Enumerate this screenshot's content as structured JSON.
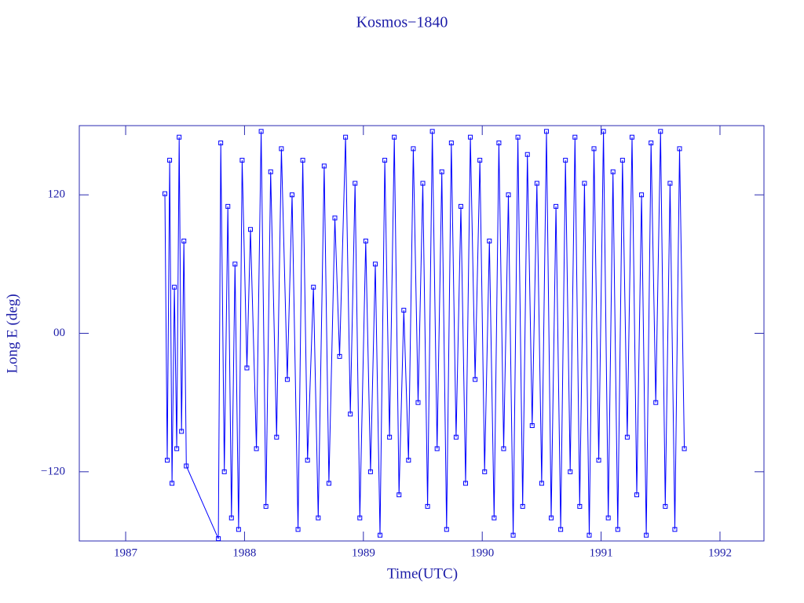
{
  "chart_data": {
    "type": "line",
    "title": "Kosmos−1840",
    "xlabel": "Time(UTC)",
    "ylabel": "Long E (deg)",
    "xlim": [
      1986.61,
      1992.37
    ],
    "ylim": [
      -180,
      180
    ],
    "xticks": [
      1987,
      1988,
      1989,
      1990,
      1991,
      1992
    ],
    "yticks": [
      {
        "value": -120,
        "label": "−120"
      },
      {
        "value": 0,
        "label": "00"
      },
      120
    ],
    "series": [
      {
        "color": "#0000ff",
        "marker": "square",
        "x": [
          1987.33,
          1987.35,
          1987.37,
          1987.39,
          1987.41,
          1987.43,
          1987.45,
          1987.47,
          1987.49,
          1987.51,
          1987.78,
          1987.8,
          1987.83,
          1987.86,
          1987.89,
          1987.92,
          1987.95,
          1987.98,
          1988.02,
          1988.05,
          1988.1,
          1988.14,
          1988.18,
          1988.22,
          1988.27,
          1988.31,
          1988.36,
          1988.4,
          1988.45,
          1988.49,
          1988.53,
          1988.58,
          1988.62,
          1988.67,
          1988.71,
          1988.76,
          1988.8,
          1988.85,
          1988.89,
          1988.93,
          1988.97,
          1989.02,
          1989.06,
          1989.1,
          1989.14,
          1989.18,
          1989.22,
          1989.26,
          1989.3,
          1989.34,
          1989.38,
          1989.42,
          1989.46,
          1989.5,
          1989.54,
          1989.58,
          1989.62,
          1989.66,
          1989.7,
          1989.74,
          1989.78,
          1989.82,
          1989.86,
          1989.9,
          1989.94,
          1989.98,
          1990.02,
          1990.06,
          1990.1,
          1990.14,
          1990.18,
          1990.22,
          1990.26,
          1990.3,
          1990.34,
          1990.38,
          1990.42,
          1990.46,
          1990.5,
          1990.54,
          1990.58,
          1990.62,
          1990.66,
          1990.7,
          1990.74,
          1990.78,
          1990.82,
          1990.86,
          1990.9,
          1990.94,
          1990.98,
          1991.02,
          1991.06,
          1991.1,
          1991.14,
          1991.18,
          1991.22,
          1991.26,
          1991.3,
          1991.34,
          1991.38,
          1991.42,
          1991.46,
          1991.5,
          1991.54,
          1991.58,
          1991.62,
          1991.66,
          1991.7
        ],
        "values": [
          121,
          -110,
          150,
          -130,
          40,
          -100,
          170,
          -85,
          80,
          -115,
          -178,
          165,
          -120,
          110,
          -160,
          60,
          -170,
          150,
          -30,
          90,
          -100,
          175,
          -150,
          140,
          -90,
          160,
          -40,
          120,
          -170,
          150,
          -110,
          40,
          -160,
          145,
          -130,
          100,
          -20,
          170,
          -70,
          130,
          -160,
          80,
          -120,
          60,
          -175,
          150,
          -90,
          170,
          -140,
          20,
          -110,
          160,
          -60,
          130,
          -150,
          175,
          -100,
          140,
          -170,
          165,
          -90,
          110,
          -130,
          170,
          -40,
          150,
          -120,
          80,
          -160,
          165,
          -100,
          120,
          -175,
          170,
          -150,
          155,
          -80,
          130,
          -130,
          175,
          -160,
          110,
          -170,
          150,
          -120,
          170,
          -150,
          130,
          -175,
          160,
          -110,
          175,
          -160,
          140,
          -170,
          150,
          -90,
          170,
          -140,
          120,
          -175,
          165,
          -60,
          175,
          -150,
          130,
          -170,
          160,
          -100
        ]
      }
    ]
  }
}
